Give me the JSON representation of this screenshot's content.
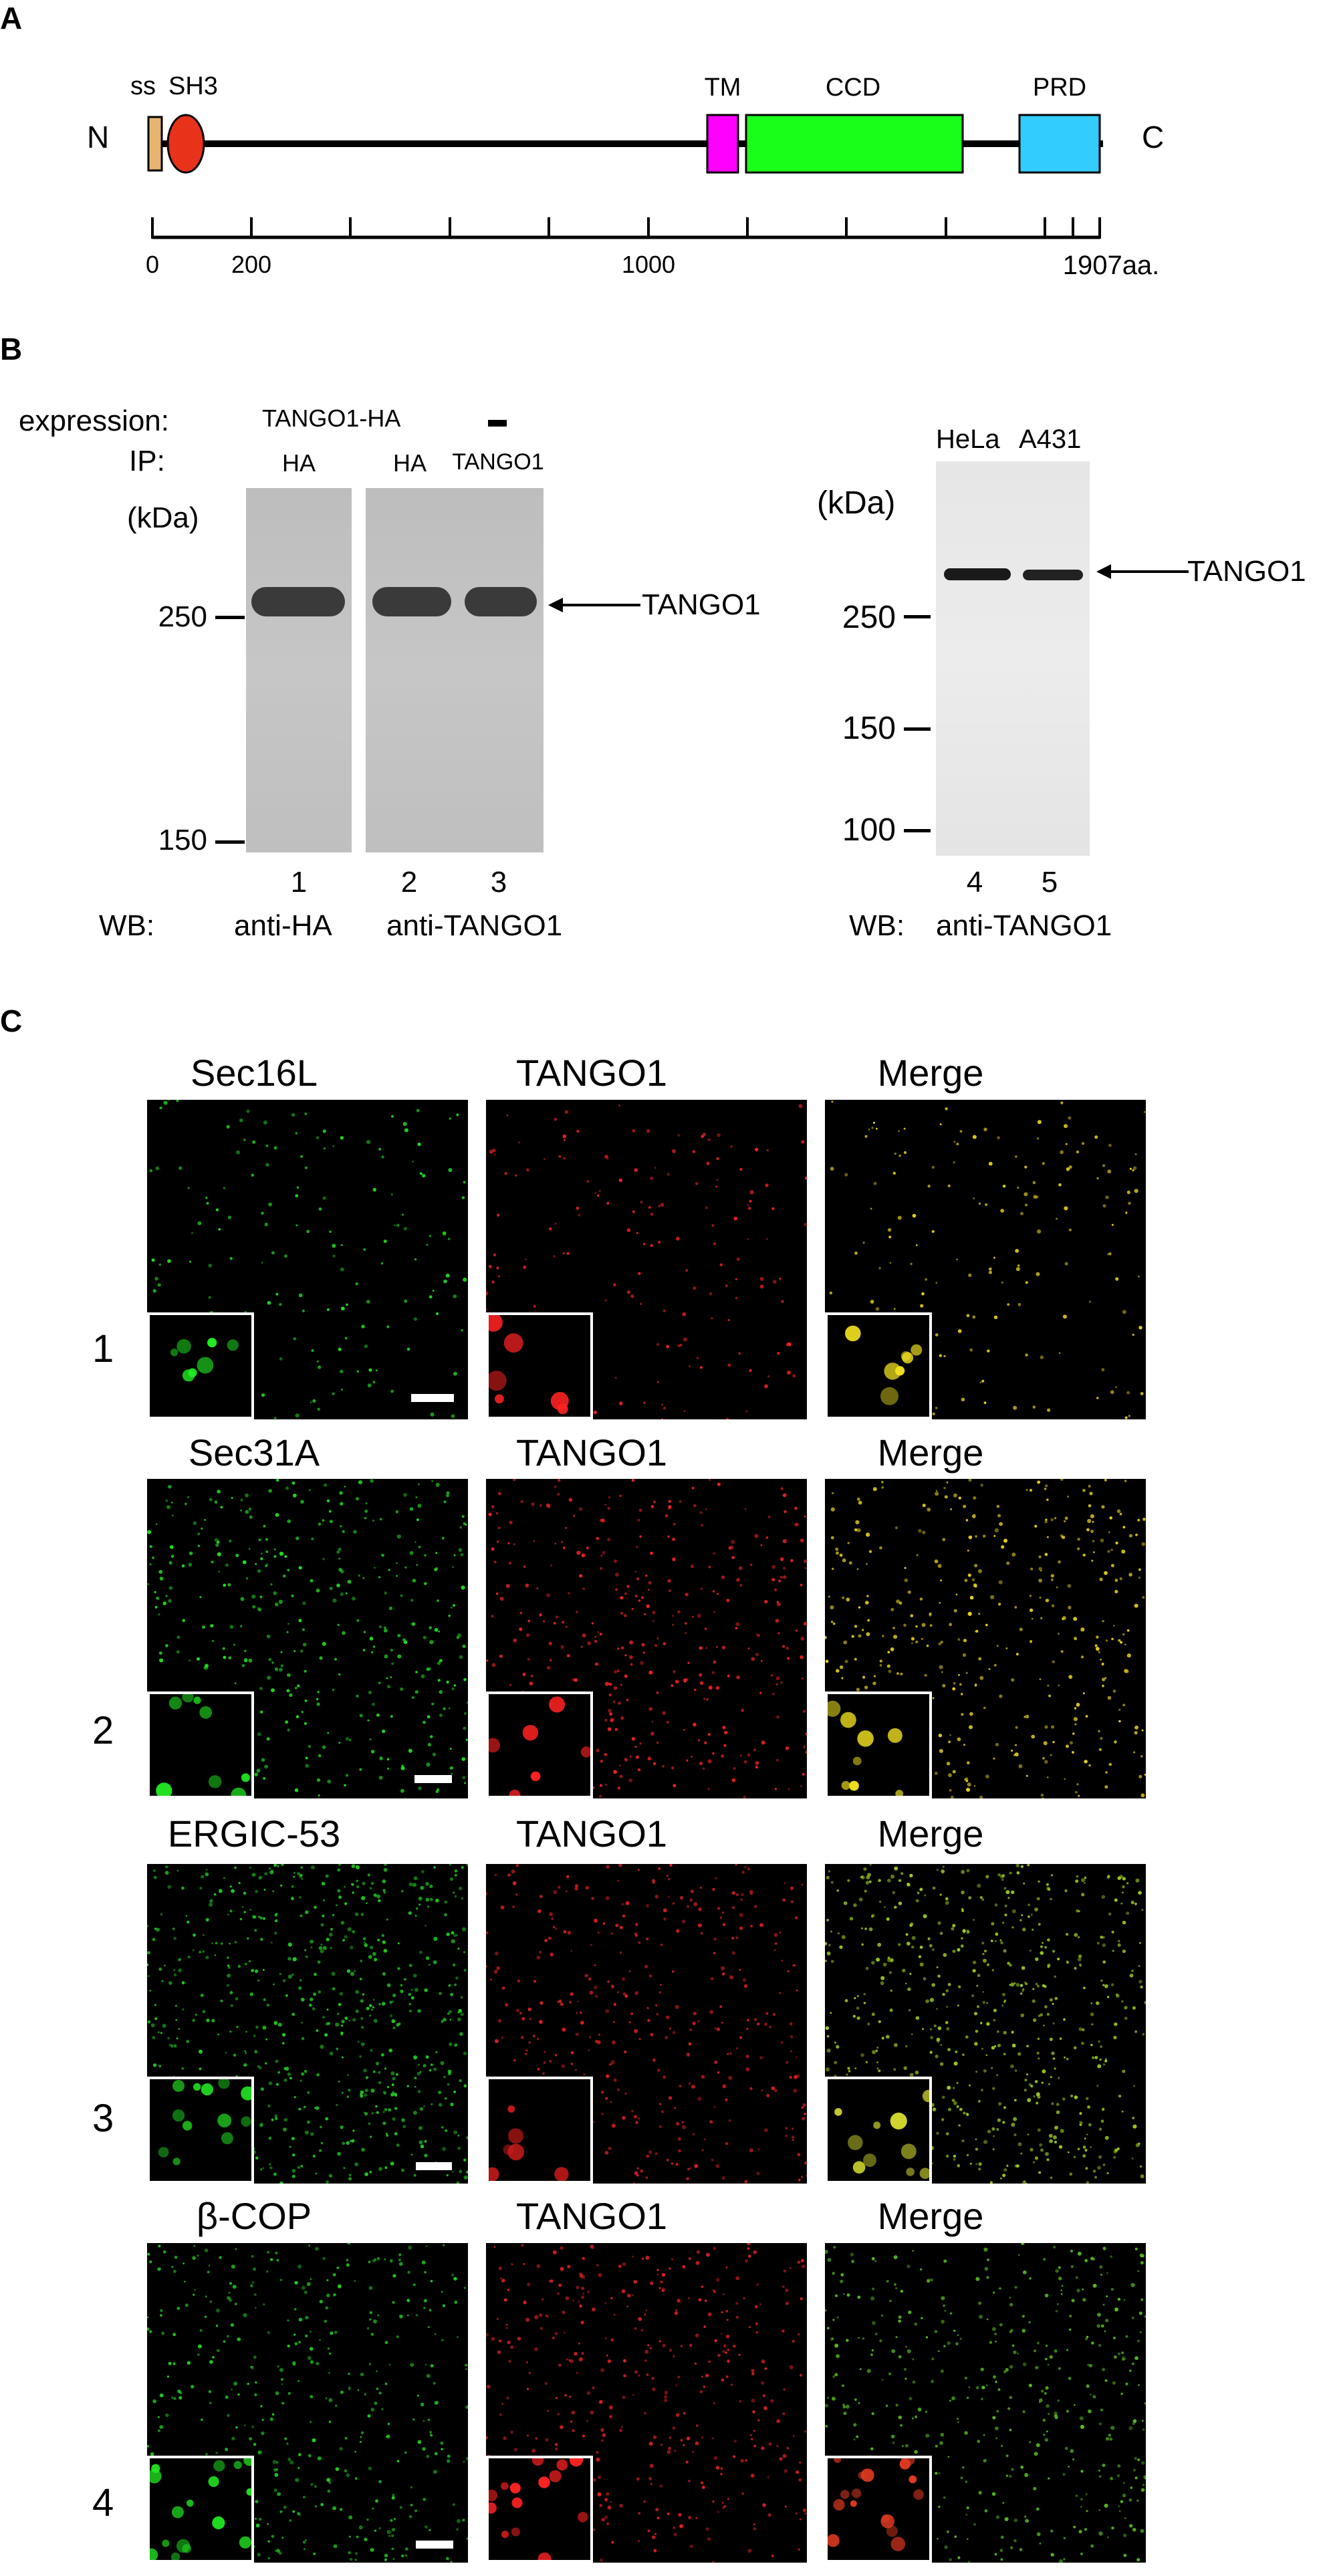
{
  "panels": {
    "A": "A",
    "B": "B",
    "C": "C"
  },
  "panelA": {
    "n_label": "N",
    "c_label": "C",
    "domains": [
      {
        "label": "ss",
        "color": "#e6b46e"
      },
      {
        "label": "SH3",
        "color": "#e8321a"
      },
      {
        "label": "TM",
        "color": "#ff00ff"
      },
      {
        "label": "CCD",
        "color": "#1aff1a"
      },
      {
        "label": "PRD",
        "color": "#33ccff"
      }
    ],
    "axis_ticks": [
      "0",
      "200",
      "1000",
      "1907aa."
    ]
  },
  "panelB": {
    "expression_label": "expression:",
    "expression_value": "TANGO1-HA",
    "expression_dash": "–",
    "ip_label": "IP:",
    "ip_lanes": [
      "HA",
      "HA",
      "TANGO1"
    ],
    "kda_left": "(kDa)",
    "kda_right": "(kDa)",
    "markers_left": [
      "250",
      "150"
    ],
    "markers_right": [
      "250",
      "150",
      "100"
    ],
    "tango1_arrow_left": "TANGO1",
    "tango1_arrow_right": "TANGO1",
    "cell_lines": [
      "HeLa",
      "A431"
    ],
    "lane_numbers": [
      "1",
      "2",
      "3",
      "4",
      "5"
    ],
    "wb_label_left": "WB:",
    "wb_anti_ha": "anti-HA",
    "wb_anti_tango1_left": "anti-TANGO1",
    "wb_label_right": "WB:",
    "wb_anti_tango1_right": "anti-TANGO1"
  },
  "panelC": {
    "rows": [
      {
        "num": "1",
        "titles": [
          "Sec16L",
          "TANGO1",
          "Merge"
        ]
      },
      {
        "num": "2",
        "titles": [
          "Sec31A",
          "TANGO1",
          "Merge"
        ]
      },
      {
        "num": "3",
        "titles": [
          "ERGIC-53",
          "TANGO1",
          "Merge"
        ]
      },
      {
        "num": "4",
        "titles": [
          "β-COP",
          "TANGO1",
          "Merge"
        ]
      }
    ],
    "channel_colors": {
      "green": "#22dd22",
      "red": "#ee2222",
      "merge_yellow": "#e8d020"
    }
  }
}
